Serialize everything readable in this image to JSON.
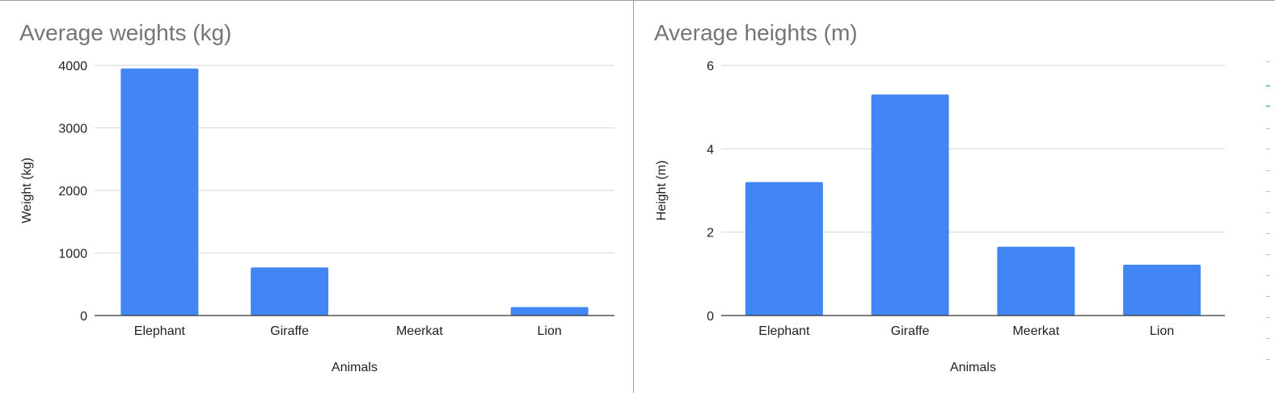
{
  "colors": {
    "bar": "#4285f4",
    "title": "#757575",
    "grid": "#d6d6d6",
    "axis": "#333333",
    "text": "#222222"
  },
  "chart_data": [
    {
      "type": "bar",
      "title": "Average weights (kg)",
      "xlabel": "Animals",
      "ylabel": "Weight (kg)",
      "categories": [
        "Elephant",
        "Giraffe",
        "Meerkat",
        "Lion"
      ],
      "values": [
        3950,
        770,
        0,
        135
      ],
      "ylim": [
        0,
        4000
      ],
      "yticks": [
        0,
        1000,
        2000,
        3000,
        4000
      ],
      "grid": true,
      "legend": "none"
    },
    {
      "type": "bar",
      "title": "Average heights (m)",
      "xlabel": "Animals",
      "ylabel": "Height (m)",
      "categories": [
        "Elephant",
        "Giraffe",
        "Meerkat",
        "Lion"
      ],
      "values": [
        3.2,
        5.3,
        1.65,
        1.22
      ],
      "ylim": [
        0,
        6
      ],
      "yticks": [
        0,
        2,
        4,
        6
      ],
      "grid": true,
      "legend": "none"
    }
  ]
}
